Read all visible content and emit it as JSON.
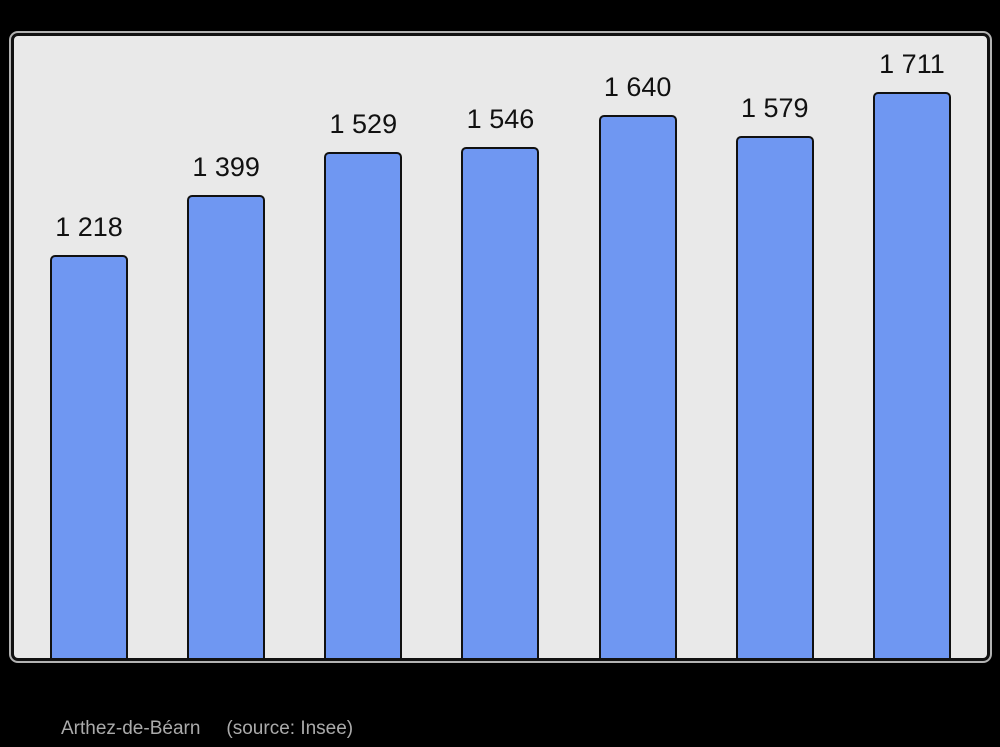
{
  "page": {
    "background": "#000000"
  },
  "caption": {
    "commune": "Arthez-de-Béarn",
    "source": "(source: Insee)",
    "color": "#ABABAB"
  },
  "chart_data": {
    "type": "bar",
    "title": "",
    "xlabel": "",
    "ylabel": "",
    "categories": [],
    "values": [
      1218,
      1399,
      1529,
      1546,
      1640,
      1579,
      1711
    ],
    "value_labels": [
      "1 218",
      "1 399",
      "1 529",
      "1 546",
      "1 640",
      "1 579",
      "1 711"
    ],
    "ylim": [
      0,
      1880
    ],
    "grid": false,
    "legend": null,
    "axes_visible": false,
    "bar_color": "#6F97F2",
    "bar_border_color": "#111111",
    "value_label_color": "#111111",
    "plot_background": "#E9E9E9",
    "plot_border_color": "#111111"
  }
}
